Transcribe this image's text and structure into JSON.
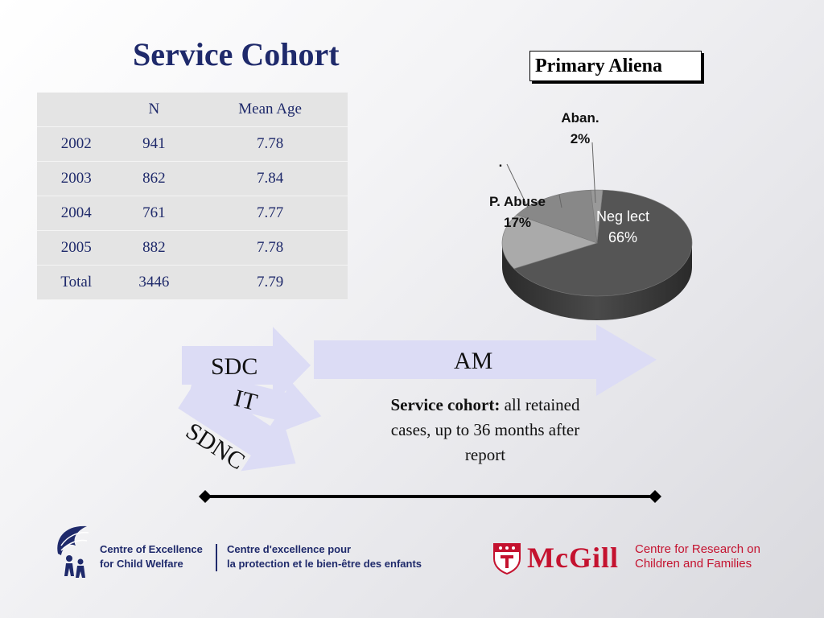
{
  "slide": {
    "title": "Service Cohort"
  },
  "table": {
    "headers": [
      "",
      "N",
      "Mean Age"
    ],
    "rows": [
      [
        "2002",
        "941",
        "7.78"
      ],
      [
        "2003",
        "862",
        "7.84"
      ],
      [
        "2004",
        "761",
        "7.77"
      ],
      [
        "2005",
        "882",
        "7.78"
      ],
      [
        "Total",
        "3446",
        "7.79"
      ]
    ]
  },
  "chart_data": {
    "type": "pie",
    "title": "Primary Aliena",
    "slices": [
      {
        "label": "Neg lect",
        "value": 66,
        "display": "66%",
        "color": "#555555"
      },
      {
        "label": "P. Abuse",
        "value": 17,
        "display": "17%",
        "color": "#aaaaaa"
      },
      {
        "label": ".",
        "value": 15,
        "display": "",
        "color": "#888888"
      },
      {
        "label": "Aban.",
        "value": 2,
        "display": "2%",
        "color": "#999999"
      }
    ]
  },
  "diagram": {
    "arrows": {
      "sdc": "SDC",
      "it": "IT",
      "sdnc": "SDNC",
      "am": "AM"
    },
    "description_bold": "Service cohort:",
    "description_rest": " all retained cases, up to 36 months after report"
  },
  "footer": {
    "coe_line1": "Centre of Excellence",
    "coe_line2": "for Child Welfare",
    "fr_line1": "Centre d'excellence pour",
    "fr_line2": "la protection et le bien-être des enfants",
    "mcgill": "McGill",
    "crcf_line1": "Centre for Research on",
    "crcf_line2": "Children and Families"
  },
  "colors": {
    "title": "#1f2a6b",
    "arrow_fill": "#dcdcf5",
    "mcgill_red": "#c4122f"
  }
}
